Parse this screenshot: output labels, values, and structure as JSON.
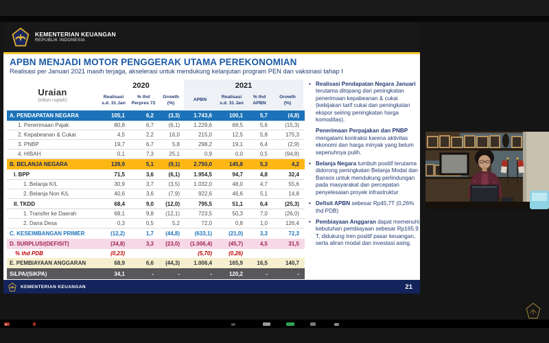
{
  "slide": {
    "org": {
      "name": "KEMENTERIAN KEUANGAN",
      "sub": "REPUBLIK INDONESIA"
    },
    "title": "APBN MENJADI MOTOR PENGGERAK UTAMA PEREKONOMIAN",
    "subtitle": "Realisasi per Januari 2021 masih terjaga, akselerasi untuk mendukung kelanjutan program PEN dan vaksinasi tahap I",
    "footer": {
      "org": "KEMENTERIAN KEUANGAN",
      "page": "21"
    }
  },
  "table": {
    "unit_label": "Uraian",
    "unit_sub": "(triliun rupiah)",
    "groups": [
      {
        "label": "2020",
        "span": 3
      },
      {
        "label": "2021",
        "span": 4
      }
    ],
    "columns": [
      "Realisasi\ns.d. 31 Jan",
      "% thd\nPerpres 72",
      "Growth\n(%)",
      "APBN",
      "Realisasi\ns.d. 31 Jan",
      "% thd\nAPBN",
      "Growth\n(%)"
    ],
    "rows": [
      {
        "label": "A. PENDAPATAN NEGARA",
        "style": "blue",
        "values": [
          "105,1",
          "6,2",
          "(3,3)",
          "1.743,6",
          "100,1",
          "5,7",
          "(4,8)"
        ]
      },
      {
        "label": "1. Penerimaan Pajak",
        "style": "sub",
        "values": [
          "80,8",
          "6,7",
          "(6,1)",
          "1.229,6",
          "68,5",
          "5,6",
          "(15,3)"
        ]
      },
      {
        "label": "2. Kepabeanan & Cukai",
        "style": "sub",
        "values": [
          "4,5",
          "2,2",
          "16,0",
          "215,0",
          "12,5",
          "5,8",
          "175,3"
        ]
      },
      {
        "label": "3. PNBP",
        "style": "sub",
        "values": [
          "19,7",
          "6,7",
          "5,8",
          "298,2",
          "19,1",
          "6,4",
          "(2,9)"
        ]
      },
      {
        "label": "4. HIBAH",
        "style": "sub",
        "values": [
          "0,1",
          "7,3",
          "25,1",
          "0,9",
          "0,0",
          "0,5",
          "(94,8)"
        ]
      },
      {
        "label": "B. BELANJA NEGARA",
        "style": "gold",
        "values": [
          "139,9",
          "5,1",
          "(9,1)",
          "2.750,0",
          "145,8",
          "5,3",
          "4,2"
        ]
      },
      {
        "label": "I. BPP",
        "style": "bold",
        "values": [
          "71,5",
          "3,6",
          "(6,1)",
          "1.954,5",
          "94,7",
          "4,8",
          "32,4"
        ]
      },
      {
        "label": "1. Belanja K/L",
        "style": "sub2",
        "values": [
          "30,9",
          "3,7",
          "(3,5)",
          "1.032,0",
          "48,0",
          "4,7",
          "55,6"
        ]
      },
      {
        "label": "2. Belanja Non K/L",
        "style": "sub2",
        "values": [
          "40,6",
          "3,6",
          "(7,9)",
          "922,6",
          "46,6",
          "5,1",
          "14,8"
        ]
      },
      {
        "label": "II. TKDD",
        "style": "bold",
        "values": [
          "68,4",
          "9,0",
          "(12,0)",
          "795,5",
          "51,1",
          "6,4",
          "(25,3)"
        ]
      },
      {
        "label": "1. Transfer ke Daerah",
        "style": "sub2",
        "values": [
          "68,1",
          "9,8",
          "(12,1)",
          "723,5",
          "50,3",
          "7,0",
          "(26,0)"
        ]
      },
      {
        "label": "2. Dana Desa",
        "style": "sub2",
        "values": [
          "0,3",
          "0,5",
          "5,2",
          "72,0",
          "0,8",
          "1,0",
          "126,4"
        ]
      },
      {
        "label": "C. KESEIMBANGAN PRIMER",
        "style": "bluetext",
        "values": [
          "(12,2)",
          "1,7",
          "(44,8)",
          "(633,1)",
          "(21,0)",
          "3,3",
          "72,3"
        ]
      },
      {
        "label": "D. SURPLUS/(DEFISIT)",
        "style": "pink",
        "values": [
          "(34,8)",
          "3,3",
          "(23,0)",
          "(1.006,4)",
          "(45,7)",
          "4,5",
          "31,5"
        ]
      },
      {
        "label": "% thd PDB",
        "style": "red",
        "values": [
          "(0,23)",
          "",
          "",
          "(5,70)",
          "(0,26)",
          "",
          ""
        ]
      },
      {
        "label": "E. PEMBIAYAAN ANGGARAN",
        "style": "cream",
        "values": [
          "68,9",
          "6,6",
          "(44,3)",
          "1.006,4",
          "165,9",
          "16,5",
          "140,7"
        ]
      },
      {
        "label": "SiLPA/(SiKPA)",
        "style": "dark",
        "values": [
          "34,1",
          "-",
          "-",
          "-",
          "120,2",
          "-",
          "-"
        ]
      }
    ]
  },
  "bullets": [
    {
      "marker": true,
      "lead": "Realisasi Pendapatan Negara Januari",
      "rest": " terutama ditopang dari peningkatan penerimaan kepabeanan & cukai (kebijakan tarif cukai dan peningkatan ekspor seiring peningkatan harga komoditas)."
    },
    {
      "marker": false,
      "lead": "Penerimaan Perpajakan dan PNBP",
      "rest": " mengalami kontraksi karena aktivitas ekonomi dan harga minyak yang belum sepenuhnya pulih."
    },
    {
      "marker": true,
      "lead": "Belanja Negara",
      "rest": " tumbuh positif terutama didorong peningkatan Belanja Modal dan Bansos untuk mendukung perlindungan pada masyarakat dan percepatan penyelesaian proyek infrastruktur"
    },
    {
      "marker": true,
      "lead": "Defisit APBN",
      "rest": " sebesar Rp45,7T (0,26% thd PDB)"
    },
    {
      "marker": true,
      "lead": "Pembiayaan Anggaran",
      "rest": " dapat memenuhi kebutuhan pembiayaan sebesar Rp165.9 T, didukung tren positif pasar keuangan, serta aliran modal dan investasi asing."
    }
  ],
  "colors": {
    "section_blue": "#1c73b9",
    "section_gold": "#fdb714",
    "surplus_pink": "#f7d9e6",
    "financing_cream": "#f5efcf",
    "silpa_gray": "#58585a",
    "footer_navy": "#13235b",
    "gold_divider": "#f2c52f",
    "title_blue": "#1b5aa5",
    "text_navy": "#223a72",
    "pdb_red": "#c00000"
  }
}
